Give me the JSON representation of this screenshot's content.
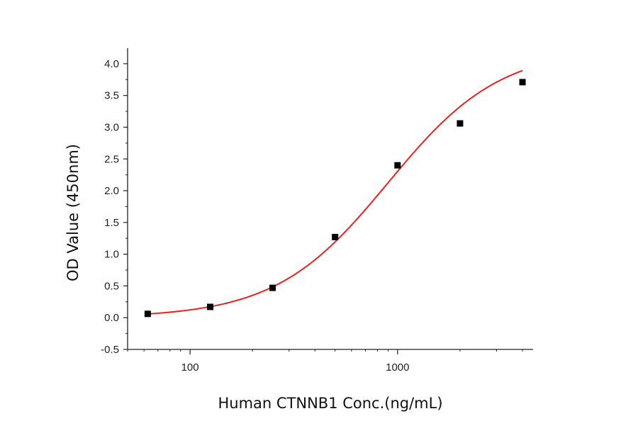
{
  "chart_data": {
    "type": "scatter",
    "title": "",
    "xlabel": "Human CTNNB1 Conc.(ng/mL)",
    "ylabel": "OD Value (450nm)",
    "x_scale": "log",
    "xlim": [
      50,
      4500
    ],
    "ylim": [
      -0.5,
      4.2
    ],
    "x_ticks": [
      100,
      1000
    ],
    "x_tick_labels": [
      "100",
      "1000"
    ],
    "y_ticks": [
      -0.5,
      0.0,
      0.5,
      1.0,
      1.5,
      2.0,
      2.5,
      3.0,
      3.5,
      4.0
    ],
    "y_tick_labels": [
      "-0.5",
      "0.0",
      "0.5",
      "1.0",
      "1.5",
      "2.0",
      "2.5",
      "3.0",
      "3.5",
      "4.0"
    ],
    "grid": false,
    "series": [
      {
        "type": "scatter",
        "color": "#000000",
        "marker": "square",
        "points": [
          {
            "x": 62.5,
            "y": 0.06
          },
          {
            "x": 125,
            "y": 0.17
          },
          {
            "x": 250,
            "y": 0.47
          },
          {
            "x": 500,
            "y": 1.27
          },
          {
            "x": 1000,
            "y": 2.4
          },
          {
            "x": 2000,
            "y": 3.06
          },
          {
            "x": 4000,
            "y": 3.71
          }
        ]
      },
      {
        "type": "line",
        "color": "#e8231f",
        "curve": "4PL",
        "params": {
          "bottom": 0.0,
          "top": 4.25,
          "ec50": 900,
          "hill": 1.6
        },
        "x_range": [
          62.5,
          4000
        ]
      }
    ]
  }
}
